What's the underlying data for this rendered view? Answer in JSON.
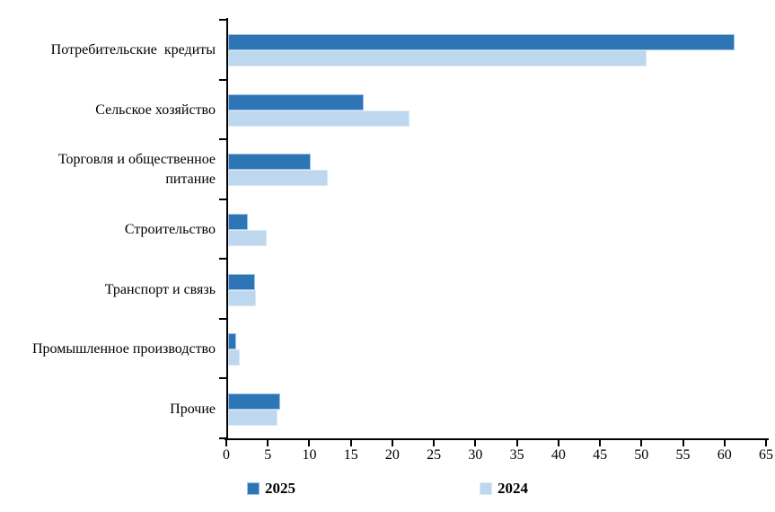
{
  "chart_data": {
    "type": "bar",
    "orientation": "horizontal",
    "title": "",
    "xlabel": "",
    "ylabel": "",
    "categories": [
      "Потребительские  кредиты",
      "Сельское хозяйство",
      "Торговля и общественное\nпитание",
      "Строительство",
      "Транспорт и связь",
      "Промышленное производство",
      "Прочие"
    ],
    "series": [
      {
        "name": "2025",
        "color": "#2E75B6",
        "border_color": "#9DC3E6",
        "values": [
          61.0,
          16.3,
          9.9,
          2.4,
          3.2,
          1.0,
          6.3
        ]
      },
      {
        "name": "2024",
        "color": "#BDD7EE",
        "border_color": "#DCE9F5",
        "values": [
          50.4,
          21.8,
          12.0,
          4.7,
          3.3,
          1.4,
          6.0
        ]
      }
    ],
    "xlim": [
      0,
      65
    ],
    "x_ticks": [
      "0",
      "5",
      "10",
      "15",
      "20",
      "25",
      "30",
      "35",
      "40",
      "45",
      "50",
      "55",
      "60",
      "65"
    ],
    "grid": false,
    "legend_position": "bottom",
    "axis_color": "#000000",
    "background": "#FFFFFF"
  }
}
